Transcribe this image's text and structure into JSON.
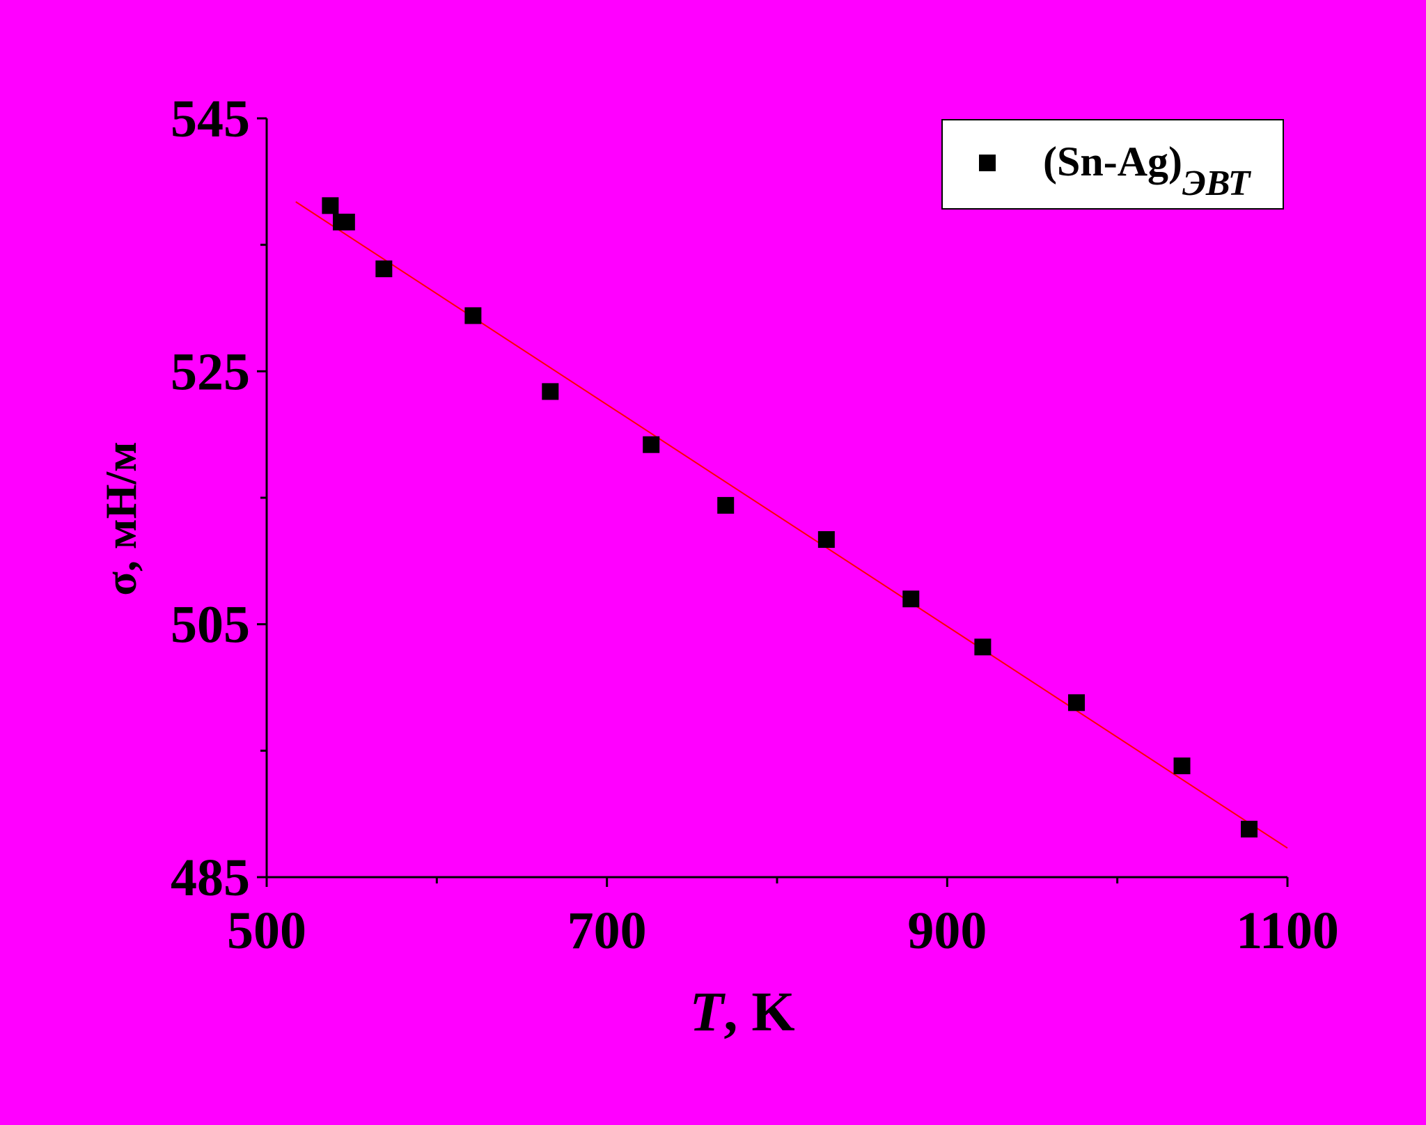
{
  "chart_data": {
    "type": "scatter",
    "ylabel": "σ, мН/м",
    "xlabel_symbol": "T",
    "xlabel_rest": ", K",
    "series": [
      {
        "name": "(Sn-Ag)",
        "name_subscript": "ЭВТ",
        "color": "#000000",
        "x": [
          537.4,
          543.8,
          547,
          568.9,
          621.3,
          666.7,
          726,
          769.8,
          829,
          878.7,
          920.9,
          976,
          1038,
          1077.5
        ],
        "values": [
          538.1,
          536.8,
          536.8,
          533.1,
          529.4,
          523.4,
          519.2,
          514.4,
          511.7,
          507.0,
          503.2,
          498.8,
          493.8,
          488.8
        ]
      }
    ],
    "fit_line": {
      "color": "#ff0000",
      "x": [
        517.1,
        1100
      ],
      "values": [
        538.4,
        487.3
      ]
    },
    "xlim": [
      500,
      1100
    ],
    "xticks": [
      500,
      700,
      900,
      1100
    ],
    "xminorticks": [
      600,
      800,
      1000
    ],
    "ylim": [
      485,
      545
    ],
    "yticks": [
      485,
      505,
      525,
      545
    ],
    "yminorticks": [
      495,
      515,
      535
    ],
    "background": "#ff00ff",
    "legend": "upper right"
  }
}
